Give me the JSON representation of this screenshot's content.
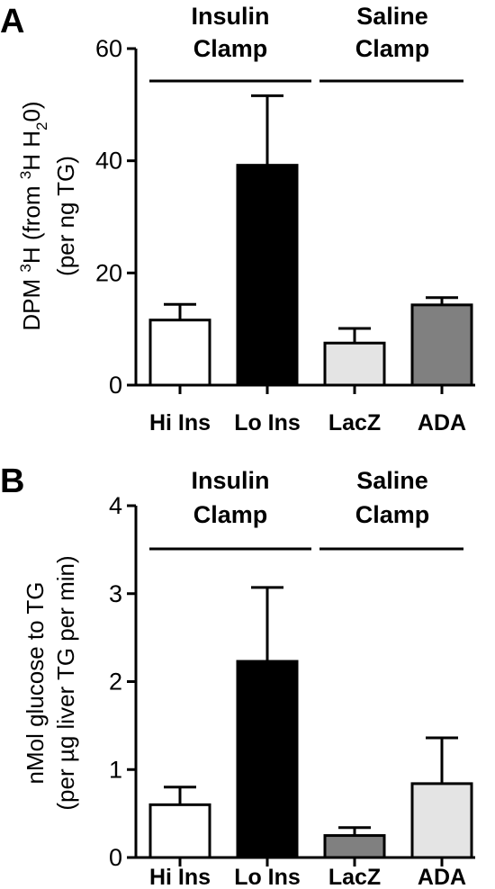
{
  "chart_data": [
    {
      "type": "bar",
      "panel": "A",
      "categories": [
        "Hi Ins",
        "Lo Ins",
        "LacZ",
        "ADA"
      ],
      "values": [
        11.6,
        39.2,
        7.5,
        14.3
      ],
      "errors": [
        2.8,
        12.4,
        2.6,
        1.3
      ],
      "colors": [
        "#ffffff",
        "#000000",
        "#e4e4e4",
        "#808080"
      ],
      "ylabel_line1": [
        "DPM ",
        "3",
        "H (from ",
        "3",
        "H H",
        "2",
        "0)"
      ],
      "ylabel_line2": "(per ng TG)",
      "ylim": [
        0,
        60
      ],
      "yticks": [
        "0",
        "20",
        "40",
        "60"
      ],
      "groups": [
        {
          "line1": "Insulin",
          "line2": "Clamp",
          "categories": [
            "Hi Ins",
            "Lo Ins"
          ]
        },
        {
          "line1": "Saline",
          "line2": "Clamp",
          "categories": [
            "LacZ",
            "ADA"
          ]
        }
      ]
    },
    {
      "type": "bar",
      "panel": "B",
      "categories": [
        "Hi Ins",
        "Lo Ins",
        "LacZ",
        "ADA"
      ],
      "values": [
        0.6,
        2.23,
        0.25,
        0.84
      ],
      "errors": [
        0.2,
        0.84,
        0.09,
        0.52
      ],
      "colors": [
        "#ffffff",
        "#000000",
        "#808080",
        "#e4e4e4"
      ],
      "ylabel_line1": "nMol glucose to TG",
      "ylabel_line2": "(per µg liver TG per min)",
      "ylim": [
        0,
        4
      ],
      "yticks": [
        "0",
        "1",
        "2",
        "3",
        "4"
      ],
      "groups": [
        {
          "line1": "Insulin",
          "line2": "Clamp",
          "categories": [
            "Hi Ins",
            "Lo Ins"
          ]
        },
        {
          "line1": "Saline",
          "line2": "Clamp",
          "categories": [
            "LacZ",
            "ADA"
          ]
        }
      ]
    }
  ]
}
